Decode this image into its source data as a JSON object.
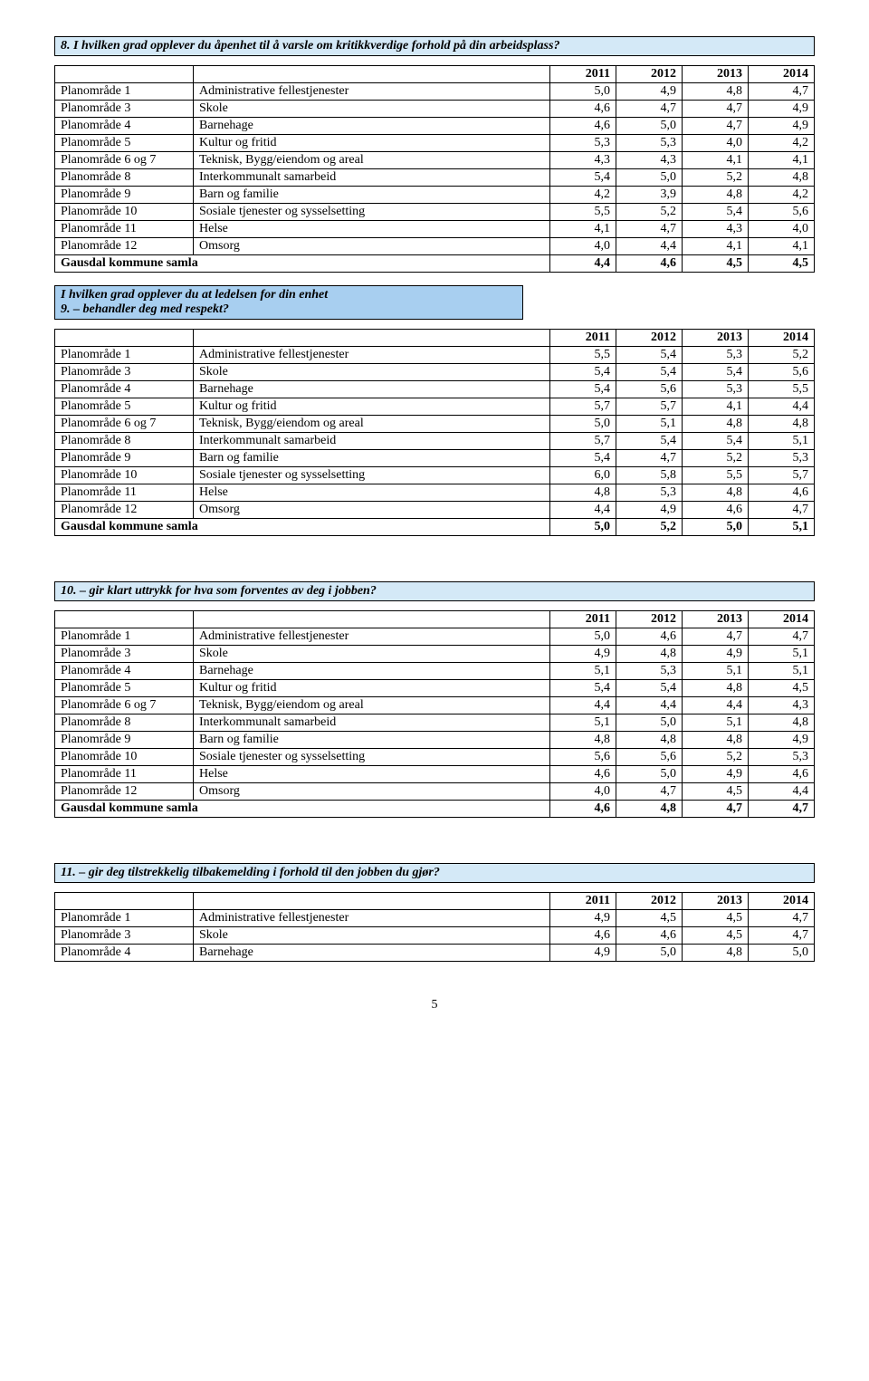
{
  "years": [
    "2011",
    "2012",
    "2013",
    "2014"
  ],
  "areas": [
    {
      "key": "Planområde 1",
      "name": "Administrative fellestjenester"
    },
    {
      "key": "Planområde 3",
      "name": "Skole"
    },
    {
      "key": "Planområde 4",
      "name": "Barnehage"
    },
    {
      "key": "Planområde 5",
      "name": "Kultur og fritid"
    },
    {
      "key": "Planområde 6 og 7",
      "name": "Teknisk, Bygg/eiendom og areal"
    },
    {
      "key": "Planområde 8",
      "name": "Interkommunalt samarbeid"
    },
    {
      "key": "Planområde 9",
      "name": "Barn og familie"
    },
    {
      "key": "Planområde 10",
      "name": "Sosiale tjenester og sysselsetting"
    },
    {
      "key": "Planområde 11",
      "name": "Helse"
    },
    {
      "key": "Planområde 12",
      "name": "Omsorg"
    }
  ],
  "total_label": "Gausdal kommune samla",
  "questions": {
    "q8": {
      "title": "8.  I hvilken grad opplever du åpenhet til å varsle om kritikkverdige forhold på din arbeidsplass?",
      "rows": [
        [
          "5,0",
          "4,9",
          "4,8",
          "4,7"
        ],
        [
          "4,6",
          "4,7",
          "4,7",
          "4,9"
        ],
        [
          "4,6",
          "5,0",
          "4,7",
          "4,9"
        ],
        [
          "5,3",
          "5,3",
          "4,0",
          "4,2"
        ],
        [
          "4,3",
          "4,3",
          "4,1",
          "4,1"
        ],
        [
          "5,4",
          "5,0",
          "5,2",
          "4,8"
        ],
        [
          "4,2",
          "3,9",
          "4,8",
          "4,2"
        ],
        [
          "5,5",
          "5,2",
          "5,4",
          "5,6"
        ],
        [
          "4,1",
          "4,7",
          "4,3",
          "4,0"
        ],
        [
          "4,0",
          "4,4",
          "4,1",
          "4,1"
        ]
      ],
      "total": [
        "4,4",
        "4,6",
        "4,5",
        "4,5"
      ]
    },
    "q9": {
      "intro1": "I hvilken grad opplever du at ledelsen for din enhet",
      "intro2": "9. – behandler deg med respekt?",
      "rows": [
        [
          "5,5",
          "5,4",
          "5,3",
          "5,2"
        ],
        [
          "5,4",
          "5,4",
          "5,4",
          "5,6"
        ],
        [
          "5,4",
          "5,6",
          "5,3",
          "5,5"
        ],
        [
          "5,7",
          "5,7",
          "4,1",
          "4,4"
        ],
        [
          "5,0",
          "5,1",
          "4,8",
          "4,8"
        ],
        [
          "5,7",
          "5,4",
          "5,4",
          "5,1"
        ],
        [
          "5,4",
          "4,7",
          "5,2",
          "5,3"
        ],
        [
          "6,0",
          "5,8",
          "5,5",
          "5,7"
        ],
        [
          "4,8",
          "5,3",
          "4,8",
          "4,6"
        ],
        [
          "4,4",
          "4,9",
          "4,6",
          "4,7"
        ]
      ],
      "total": [
        "5,0",
        "5,2",
        "5,0",
        "5,1"
      ]
    },
    "q10": {
      "title": "10. – gir klart uttrykk for hva som forventes av deg i jobben?",
      "rows": [
        [
          "5,0",
          "4,6",
          "4,7",
          "4,7"
        ],
        [
          "4,9",
          "4,8",
          "4,9",
          "5,1"
        ],
        [
          "5,1",
          "5,3",
          "5,1",
          "5,1"
        ],
        [
          "5,4",
          "5,4",
          "4,8",
          "4,5"
        ],
        [
          "4,4",
          "4,4",
          "4,4",
          "4,3"
        ],
        [
          "5,1",
          "5,0",
          "5,1",
          "4,8"
        ],
        [
          "4,8",
          "4,8",
          "4,8",
          "4,9"
        ],
        [
          "5,6",
          "5,6",
          "5,2",
          "5,3"
        ],
        [
          "4,6",
          "5,0",
          "4,9",
          "4,6"
        ],
        [
          "4,0",
          "4,7",
          "4,5",
          "4,4"
        ]
      ],
      "total": [
        "4,6",
        "4,8",
        "4,7",
        "4,7"
      ]
    },
    "q11": {
      "title": "11. – gir deg tilstrekkelig tilbakemelding i forhold til den jobben du gjør?",
      "rows": [
        [
          "4,9",
          "4,5",
          "4,5",
          "4,7"
        ],
        [
          "4,6",
          "4,6",
          "4,5",
          "4,7"
        ],
        [
          "4,9",
          "5,0",
          "4,8",
          "5,0"
        ]
      ],
      "row_count": 3
    }
  },
  "page_number": "5"
}
